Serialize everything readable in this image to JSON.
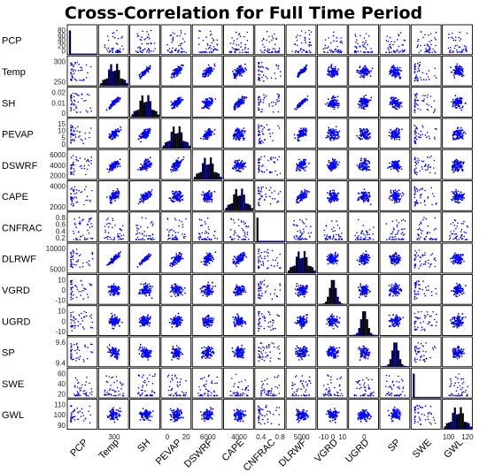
{
  "chart_data": {
    "type": "scatter",
    "title": "Cross-Correlation for Full Time Period",
    "variables": [
      "PCP",
      "Temp",
      "SH",
      "PEVAP",
      "DSWRF",
      "CAPE",
      "CNFRAC",
      "DLRWF",
      "VGRD",
      "UGRD",
      "SP",
      "SWE",
      "GWL"
    ],
    "row_ticks": [
      [
        "80",
        "60",
        "40",
        "20",
        "0"
      ],
      [
        "300",
        "250"
      ],
      [
        "0.02",
        "0.01",
        "0"
      ],
      [
        "15",
        "10",
        "5",
        "0"
      ],
      [
        "6000",
        "4000",
        "2000"
      ],
      [
        "4000",
        "2000"
      ],
      [
        "0.8",
        "0.6",
        "0.4",
        "0.2"
      ],
      [
        "10000",
        "5000"
      ],
      [
        "10",
        "0",
        "-10"
      ],
      [
        "10",
        "0",
        "-10"
      ],
      [
        "9.6",
        "9.4"
      ],
      [
        "60",
        "40",
        "20"
      ],
      [
        "110",
        "100",
        "90"
      ]
    ],
    "col_ticks": [
      [],
      [
        "300"
      ],
      [],
      [
        "0",
        "20"
      ],
      [
        "6000"
      ],
      [
        "4000"
      ],
      [
        "0.4",
        "0.8"
      ],
      [
        "5000"
      ],
      [
        "-10",
        "0",
        "10"
      ],
      [
        "0"
      ],
      [],
      [],
      [
        "100",
        "120"
      ]
    ],
    "diagonal": "histogram",
    "off_diagonal": "scatter",
    "grid": false,
    "legend": "none"
  },
  "colors": {
    "points": "#0000ff",
    "histogram_fill": "#000000",
    "histogram_edge": "#0000cc",
    "panel_border": "#000000"
  }
}
